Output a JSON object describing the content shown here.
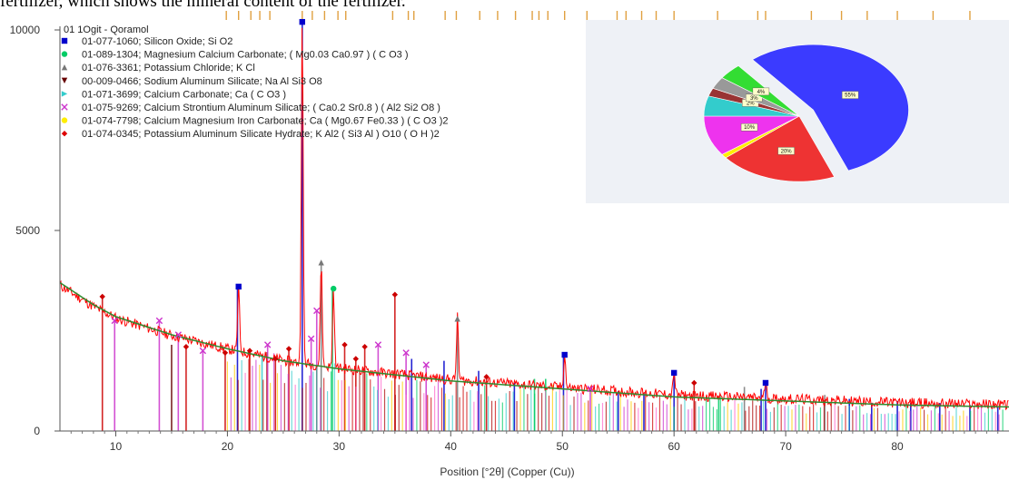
{
  "caption_text": "fertilizer, which shows the mineral content of the fertilizer.",
  "chart_data": {
    "type": "line",
    "xlabel": "Position [°2θ] (Copper (Cu))",
    "ylabel": "",
    "xlim": [
      5,
      90
    ],
    "ylim": [
      0,
      10000
    ],
    "x_ticks": [
      10,
      20,
      30,
      40,
      50,
      60,
      70,
      80
    ],
    "y_ticks": [
      0,
      5000,
      10000
    ],
    "pattern_name": "01 1Ogit - Qoramol",
    "pattern_color": "#ff0000",
    "background_color": "#2e8b2e",
    "baseline": [
      [
        5,
        3700
      ],
      [
        8,
        3150
      ],
      [
        10,
        2850
      ],
      [
        15,
        2400
      ],
      [
        20,
        2050
      ],
      [
        25,
        1750
      ],
      [
        30,
        1550
      ],
      [
        40,
        1250
      ],
      [
        50,
        1050
      ],
      [
        60,
        850
      ],
      [
        70,
        750
      ],
      [
        80,
        650
      ],
      [
        90,
        600
      ]
    ],
    "major_peaks": [
      {
        "x": 21.0,
        "y": 3600,
        "color": "#0000cc",
        "marker": "square"
      },
      {
        "x": 26.7,
        "y": 10200,
        "color": "#0000cc",
        "marker": "square"
      },
      {
        "x": 28.4,
        "y": 4200,
        "color": "#777777",
        "marker": "triangle"
      },
      {
        "x": 29.5,
        "y": 3550,
        "color": "#00cc66",
        "marker": "circle"
      },
      {
        "x": 40.6,
        "y": 2800,
        "color": "#777777",
        "marker": "triangle"
      },
      {
        "x": 50.2,
        "y": 1900,
        "color": "#0000cc",
        "marker": "square"
      },
      {
        "x": 60.0,
        "y": 1450,
        "color": "#0000cc",
        "marker": "square"
      },
      {
        "x": 68.2,
        "y": 1200,
        "color": "#0000cc",
        "marker": "square"
      }
    ],
    "reference_lines": [
      {
        "x": 8.8,
        "h": 3350,
        "color": "#cc0000"
      },
      {
        "x": 9.9,
        "h": 2750,
        "color": "#cc33cc"
      },
      {
        "x": 13.9,
        "h": 2750,
        "color": "#cc33cc"
      },
      {
        "x": 15.0,
        "h": 2150,
        "color": "#660000"
      },
      {
        "x": 15.6,
        "h": 2400,
        "color": "#cc33cc"
      },
      {
        "x": 16.3,
        "h": 2100,
        "color": "#cc0000"
      },
      {
        "x": 17.8,
        "h": 2000,
        "color": "#cc33cc"
      },
      {
        "x": 19.8,
        "h": 1950,
        "color": "#cc0000"
      },
      {
        "x": 20.9,
        "h": 3600,
        "color": "#0000cc"
      },
      {
        "x": 22.0,
        "h": 2000,
        "color": "#cc0000"
      },
      {
        "x": 23.1,
        "h": 1900,
        "color": "#33cccc"
      },
      {
        "x": 23.6,
        "h": 2150,
        "color": "#cc33cc"
      },
      {
        "x": 24.3,
        "h": 1800,
        "color": "#cc0000"
      },
      {
        "x": 25.5,
        "h": 2050,
        "color": "#cc0000"
      },
      {
        "x": 26.7,
        "h": 10200,
        "color": "#0000cc"
      },
      {
        "x": 27.5,
        "h": 2300,
        "color": "#cc33cc"
      },
      {
        "x": 28.0,
        "h": 3000,
        "color": "#cc33cc"
      },
      {
        "x": 28.4,
        "h": 4200,
        "color": "#777777"
      },
      {
        "x": 29.4,
        "h": 3550,
        "color": "#00cc66"
      },
      {
        "x": 30.5,
        "h": 2150,
        "color": "#cc0000"
      },
      {
        "x": 31.5,
        "h": 1800,
        "color": "#cc0000"
      },
      {
        "x": 32.3,
        "h": 2100,
        "color": "#cc0000"
      },
      {
        "x": 33.5,
        "h": 2150,
        "color": "#cc33cc"
      },
      {
        "x": 35.0,
        "h": 3400,
        "color": "#cc0000"
      },
      {
        "x": 36.0,
        "h": 1950,
        "color": "#cc33cc"
      },
      {
        "x": 36.5,
        "h": 1800,
        "color": "#0000cc"
      },
      {
        "x": 37.8,
        "h": 1650,
        "color": "#cc33cc"
      },
      {
        "x": 39.4,
        "h": 1750,
        "color": "#0000cc"
      },
      {
        "x": 40.6,
        "h": 2800,
        "color": "#777777"
      },
      {
        "x": 42.5,
        "h": 1500,
        "color": "#0000cc"
      },
      {
        "x": 43.2,
        "h": 1350,
        "color": "#cc0000"
      },
      {
        "x": 45.7,
        "h": 1200,
        "color": "#0000cc"
      },
      {
        "x": 47.5,
        "h": 1300,
        "color": "#00cc66"
      },
      {
        "x": 48.5,
        "h": 1300,
        "color": "#00cc66"
      },
      {
        "x": 50.1,
        "h": 1900,
        "color": "#0000cc"
      },
      {
        "x": 52.5,
        "h": 1050,
        "color": "#cc33cc"
      },
      {
        "x": 55.0,
        "h": 1000,
        "color": "#0000cc"
      },
      {
        "x": 57.3,
        "h": 950,
        "color": "#0000cc"
      },
      {
        "x": 60.0,
        "h": 1450,
        "color": "#0000cc"
      },
      {
        "x": 61.8,
        "h": 1200,
        "color": "#cc0000"
      },
      {
        "x": 64.0,
        "h": 850,
        "color": "#00cc66"
      },
      {
        "x": 66.3,
        "h": 1100,
        "color": "#777777"
      },
      {
        "x": 67.8,
        "h": 1050,
        "color": "#0000cc"
      },
      {
        "x": 68.2,
        "h": 1200,
        "color": "#0000cc"
      },
      {
        "x": 73.5,
        "h": 900,
        "color": "#777777"
      },
      {
        "x": 75.7,
        "h": 800,
        "color": "#0000cc"
      },
      {
        "x": 77.7,
        "h": 700,
        "color": "#0000cc"
      },
      {
        "x": 80.0,
        "h": 750,
        "color": "#0000cc"
      },
      {
        "x": 81.2,
        "h": 700,
        "color": "#0000cc"
      },
      {
        "x": 83.8,
        "h": 700,
        "color": "#0000cc"
      },
      {
        "x": 86.5,
        "h": 650,
        "color": "#0000cc"
      },
      {
        "x": 89.0,
        "h": 600,
        "color": "#0000cc"
      }
    ],
    "top_tick_positions": [
      19.9,
      21.0,
      22.1,
      22.9,
      23.8,
      26.7,
      27.6,
      28.7,
      29.9,
      30.6,
      34.8,
      36.2,
      36.7,
      39.5,
      40.5,
      42.6,
      44.2,
      45.8,
      47.3,
      47.9,
      48.7,
      50.2,
      52.2,
      54.9,
      55.7,
      57.1,
      58.4,
      60.0,
      63.9,
      67.5,
      68.2,
      72.3,
      75.0,
      77.3,
      80.0,
      83.2,
      86.5
    ],
    "legend": [
      {
        "label": "01-077-1060; Silicon Oxide; Si O2",
        "color": "#0000cc",
        "marker": "square"
      },
      {
        "label": "01-089-1304; Magnesium Calcium Carbonate; ( Mg0.03 Ca0.97 ) ( C O3 )",
        "color": "#00cc66",
        "marker": "circle"
      },
      {
        "label": "01-076-3361; Potassium Chloride; K Cl",
        "color": "#777777",
        "marker": "triangle"
      },
      {
        "label": "00-009-0466; Sodium Aluminum Silicate; Na Al Si3 O8",
        "color": "#660000",
        "marker": "triangle-down"
      },
      {
        "label": "01-071-3699; Calcium Carbonate; Ca ( C O3 )",
        "color": "#33cccc",
        "marker": "triangle-right"
      },
      {
        "label": "01-075-9269; Calcium Strontium Aluminum Silicate; ( Ca0.2 Sr0.8 ) ( Al2 Si2 O8 )",
        "color": "#cc33cc",
        "marker": "x"
      },
      {
        "label": "01-074-7798; Calcium Magnesium Iron Carbonate; Ca ( Mg0.67 Fe0.33 ) ( C O3 )2",
        "color": "#ffee00",
        "marker": "circle"
      },
      {
        "label": "01-074-0345; Potassium Aluminum Silicate Hydrate; K Al2 ( Si3 Al ) O10 ( O H )2",
        "color": "#dd0000",
        "marker": "diamond"
      }
    ],
    "pie": {
      "slices": [
        {
          "label": "55%",
          "value": 55,
          "color": "#3b3bff"
        },
        {
          "label": "20%",
          "value": 20,
          "color": "#ee3333"
        },
        {
          "label": "",
          "value": 1,
          "color": "#ffee00"
        },
        {
          "label": "10%",
          "value": 10,
          "color": "#ee33ee"
        },
        {
          "label": "",
          "value": 5,
          "color": "#33cccc"
        },
        {
          "label": "2%",
          "value": 2,
          "color": "#993333"
        },
        {
          "label": "3%",
          "value": 3,
          "color": "#999999"
        },
        {
          "label": "4%",
          "value": 4,
          "color": "#33dd33"
        }
      ]
    }
  }
}
